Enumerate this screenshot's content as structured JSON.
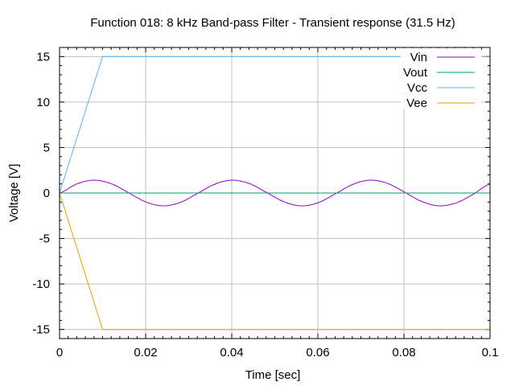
{
  "chart_data": {
    "type": "line",
    "title": "Function 018: 8 kHz Band-pass Filter - Transient response (31.5 Hz)",
    "xlabel": "Time [sec]",
    "ylabel": "Voltage [V]",
    "xlim": [
      0,
      0.1
    ],
    "ylim": [
      -16,
      16
    ],
    "grid": true,
    "legend_position": "top-right",
    "x_ticks": [
      0,
      0.02,
      0.04,
      0.06,
      0.08,
      0.1
    ],
    "x_tick_labels": [
      "0",
      "0.02",
      "0.04",
      "0.06",
      "0.08",
      "0.1"
    ],
    "y_ticks": [
      15,
      10,
      5,
      0,
      -5,
      -10,
      -15
    ],
    "y_tick_labels": [
      "15",
      "10",
      "5",
      "0",
      "-5",
      "-10",
      "-15"
    ],
    "series": [
      {
        "name": "Vin",
        "color": "#9400d3",
        "x": [
          0,
          0.004,
          0.008,
          0.012,
          0.016,
          0.02,
          0.024,
          0.028,
          0.032,
          0.036,
          0.04,
          0.044,
          0.048,
          0.052,
          0.056,
          0.06,
          0.064,
          0.068,
          0.072,
          0.076,
          0.08,
          0.084,
          0.088,
          0.092,
          0.096,
          0.1
        ],
        "values": [
          0,
          1.0,
          1.41,
          1.02,
          0.04,
          -0.98,
          -1.41,
          -1.04,
          -0.06,
          0.96,
          1.41,
          1.06,
          0.08,
          -0.94,
          -1.41,
          -1.08,
          -0.11,
          0.92,
          1.41,
          1.09,
          0.13,
          -0.9,
          -1.41,
          -1.11,
          -0.16,
          1.0
        ]
      },
      {
        "name": "Vout",
        "color": "#009e73",
        "x": [
          0,
          0.1
        ],
        "values": [
          0,
          0
        ]
      },
      {
        "name": "Vcc",
        "color": "#56b4e9",
        "x": [
          0,
          0.001,
          0.002,
          0.003,
          0.004,
          0.005,
          0.006,
          0.007,
          0.008,
          0.009,
          0.01,
          0.1
        ],
        "values": [
          0,
          1.5,
          3.0,
          4.5,
          6.0,
          7.5,
          9.0,
          10.5,
          12.0,
          13.5,
          15,
          15
        ]
      },
      {
        "name": "Vee",
        "color": "#e69f00",
        "x": [
          0,
          0.001,
          0.002,
          0.003,
          0.004,
          0.005,
          0.006,
          0.007,
          0.008,
          0.009,
          0.01,
          0.1
        ],
        "values": [
          0,
          -1.5,
          -3.0,
          -4.5,
          -6.0,
          -7.5,
          -9.0,
          -10.5,
          -12.0,
          -13.5,
          -15,
          -15
        ]
      }
    ]
  }
}
